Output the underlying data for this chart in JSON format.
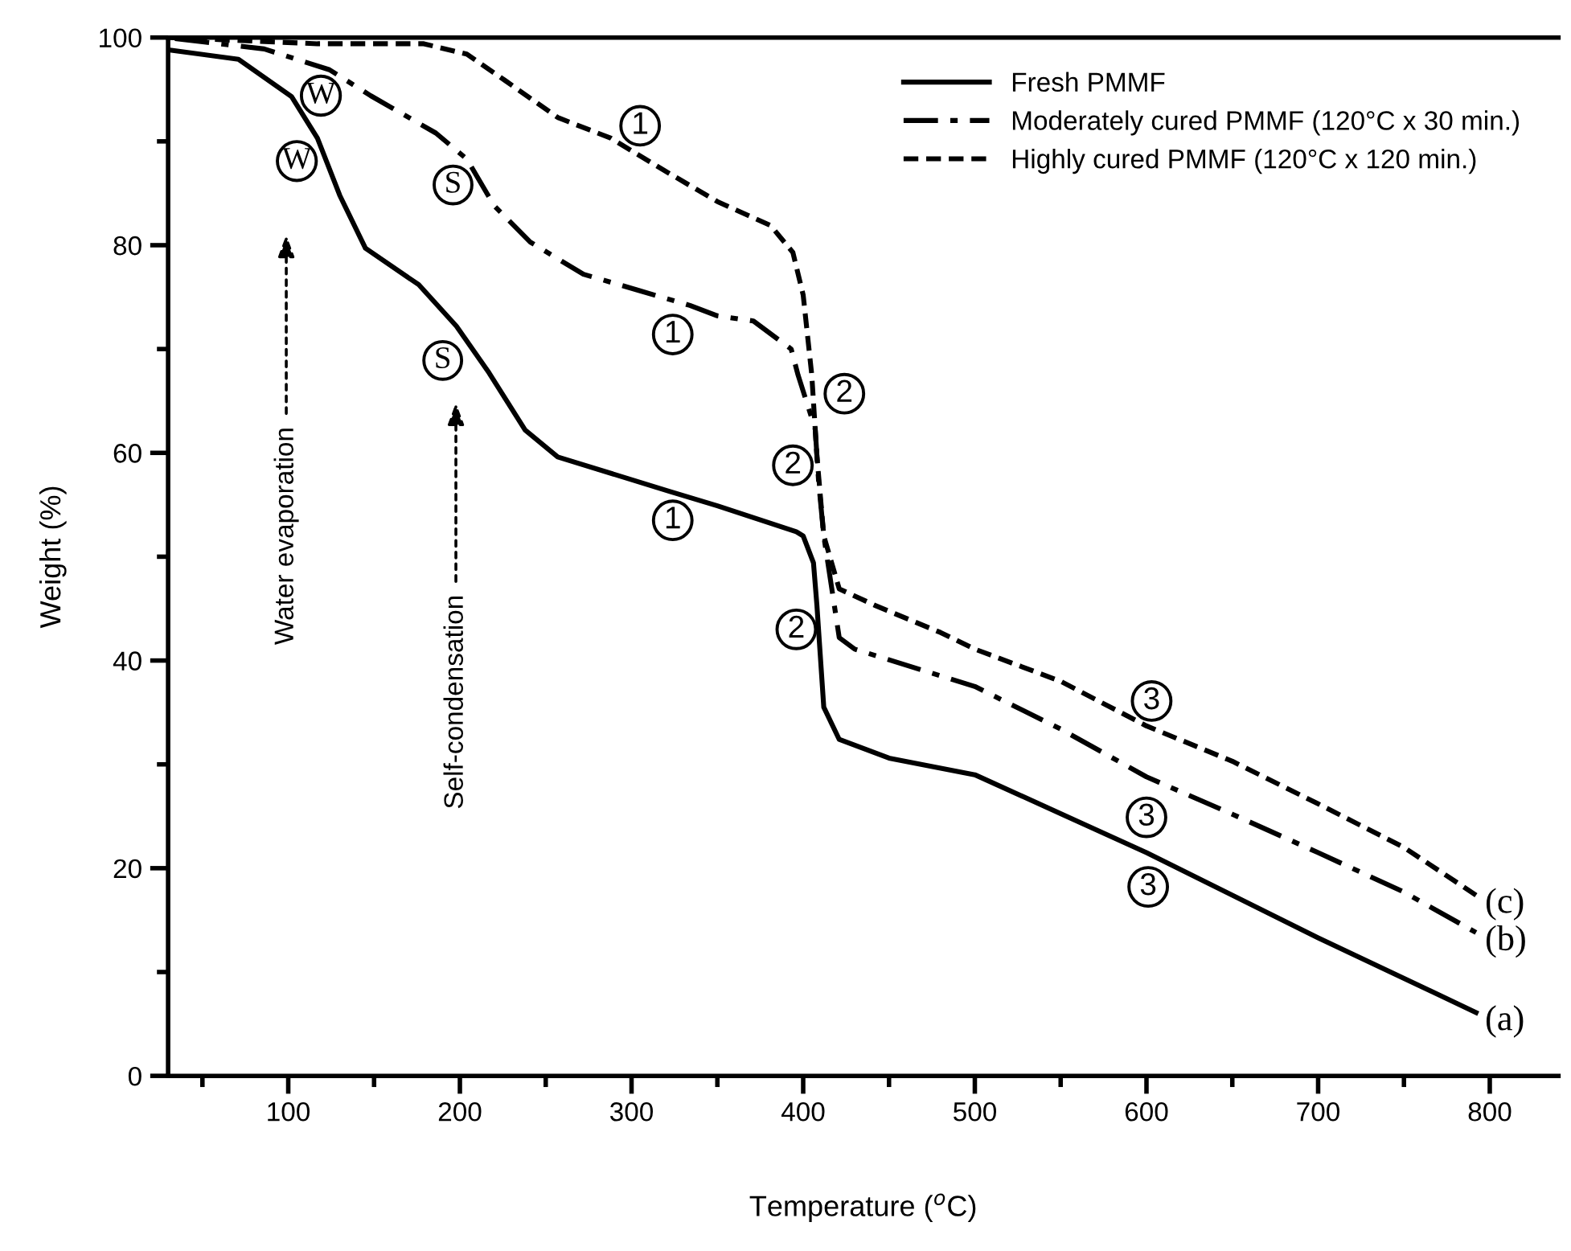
{
  "chart_data": {
    "type": "line",
    "xlabel": "Temperature ($^{o}$C)",
    "ylabel": "Weight (%)",
    "xlim": [
      30,
      840
    ],
    "ylim": [
      0,
      100
    ],
    "xticks": [
      100,
      200,
      300,
      400,
      500,
      600,
      700,
      800
    ],
    "yticks": [
      0,
      20,
      40,
      60,
      80,
      100
    ],
    "grid": false,
    "legend": "top right",
    "marker": "none",
    "series": [
      {
        "name": "Fresh PMMF",
        "color": "#000000",
        "line_style": "solid",
        "x": [
          31,
          71,
          102,
          117,
          130,
          145,
          176,
          198,
          217,
          238,
          257,
          322,
          350,
          396,
          400,
          406,
          408,
          412,
          421,
          450,
          500,
          600,
          700,
          792
        ],
        "values": [
          98.8,
          97.9,
          94.3,
          90.3,
          84.8,
          79.7,
          76.2,
          72.2,
          67.7,
          62.2,
          59.6,
          56.3,
          54.9,
          52.4,
          52.0,
          49.4,
          45.3,
          35.5,
          32.4,
          30.6,
          29,
          21.5,
          13.3,
          6.1
        ]
      },
      {
        "name": "Moderately cured PMMF (120°C x 30 min.)",
        "color": "#000000",
        "line_style": "dashdot",
        "x": [
          34,
          86,
          124,
          148,
          186,
          204,
          220,
          241,
          272,
          303,
          334,
          350,
          371,
          393,
          397,
          407,
          409,
          412,
          421,
          430,
          500,
          550,
          600,
          650,
          700,
          750,
          792
        ],
        "values": [
          99.9,
          98.9,
          96.9,
          94.4,
          90.8,
          88.3,
          83.8,
          80.3,
          77.2,
          75.7,
          74.2,
          73.2,
          72.7,
          70.0,
          67.5,
          62.3,
          57.2,
          52.0,
          42.2,
          41.1,
          37.5,
          33.4,
          28.8,
          25.2,
          21.5,
          17.7,
          13.8
        ]
      },
      {
        "name": "Highly cured PMMF (120°C x 120 min.)",
        "color": "#000000",
        "line_style": "dashed",
        "x": [
          31,
          117,
          179,
          204,
          226,
          257,
          288,
          318,
          350,
          381,
          394,
          400,
          405,
          408,
          412,
          421,
          442,
          480,
          500,
          550,
          600,
          650,
          700,
          750,
          792
        ],
        "values": [
          100,
          99.4,
          99.4,
          98.4,
          95.9,
          92.3,
          90.3,
          87.3,
          84.2,
          81.9,
          79.3,
          75.2,
          67.5,
          59.7,
          52.0,
          46.9,
          45.3,
          42.7,
          41.1,
          38,
          33.7,
          30.3,
          26.2,
          22,
          17.4
        ]
      }
    ],
    "annotations": [
      {
        "text": "W",
        "x": 119,
        "y": 94.4
      },
      {
        "text": "W",
        "x": 105,
        "y": 88.1
      },
      {
        "text": "S",
        "x": 196,
        "y": 85.8
      },
      {
        "text": "S",
        "x": 190,
        "y": 68.9
      },
      {
        "text": "1",
        "x": 305,
        "y": 91.5
      },
      {
        "text": "1",
        "x": 324,
        "y": 71.4
      },
      {
        "text": "1",
        "x": 324,
        "y": 53.5
      },
      {
        "text": "2",
        "x": 424,
        "y": 65.7
      },
      {
        "text": "2",
        "x": 394,
        "y": 58.8
      },
      {
        "text": "2",
        "x": 396,
        "y": 43.0
      },
      {
        "text": "3",
        "x": 603,
        "y": 36.1
      },
      {
        "text": "3",
        "x": 600,
        "y": 24.9
      },
      {
        "text": "3",
        "x": 601,
        "y": 18.2
      },
      {
        "text": "(a)",
        "x": 792,
        "y": 6.1
      },
      {
        "text": "(b)",
        "x": 792,
        "y": 13.8
      },
      {
        "text": "(c)",
        "x": 792,
        "y": 17.4
      },
      "Water evaporation",
      "Self-condensation"
    ]
  }
}
